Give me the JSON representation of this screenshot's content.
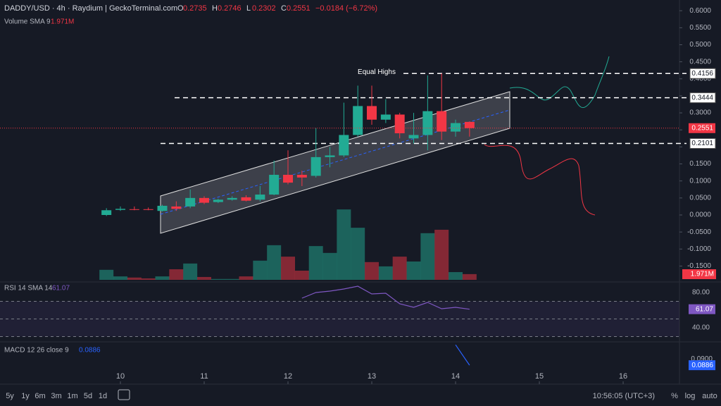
{
  "chart_data": {
    "type": "candlestick",
    "title": "DADDY/USD · 4h · Raydium | GeckoTerminal.com",
    "legend": {
      "o": "O",
      "h": "H",
      "l": "L",
      "c": "C",
      "change": "−0.0184 (−6.72%)"
    },
    "volume_title": "Volume SMA 9",
    "volume_sma_label": "1.971M",
    "volume_sma": 1.971,
    "up_color": "#22ab94",
    "down_color": "#f23645",
    "x": [
      9.8333,
      10.0,
      10.1667,
      10.3333,
      10.5,
      10.6667,
      10.8333,
      11.0,
      11.1667,
      11.3333,
      11.5,
      11.6667,
      11.8333,
      12.0,
      12.1667,
      12.3333,
      12.5,
      12.6667,
      12.8333,
      13.0,
      13.1667,
      13.3333,
      13.5,
      13.6667,
      13.8333,
      14.0,
      14.1667
    ],
    "open": [
      0.0,
      0.015,
      0.017,
      0.017,
      0.012,
      0.025,
      0.025,
      0.05,
      0.038,
      0.045,
      0.052,
      0.045,
      0.06,
      0.118,
      0.118,
      0.115,
      0.17,
      0.175,
      0.235,
      0.32,
      0.28,
      0.295,
      0.225,
      0.235,
      0.305,
      0.245,
      0.2735
    ],
    "high": [
      0.02,
      0.025,
      0.025,
      0.022,
      0.03,
      0.04,
      0.075,
      0.055,
      0.048,
      0.055,
      0.058,
      0.085,
      0.16,
      0.19,
      0.13,
      0.255,
      0.2,
      0.33,
      0.38,
      0.38,
      0.34,
      0.3,
      0.3,
      0.41,
      0.4156,
      0.28,
      0.2746
    ],
    "low": [
      -0.003,
      0.012,
      0.014,
      0.014,
      0.01,
      0.012,
      0.02,
      0.032,
      0.035,
      0.042,
      0.04,
      0.04,
      0.058,
      0.09,
      0.085,
      0.11,
      0.14,
      0.17,
      0.23,
      0.265,
      0.27,
      0.225,
      0.21,
      0.19,
      0.22,
      0.23,
      0.2302
    ],
    "close": [
      0.014,
      0.018,
      0.016,
      0.016,
      0.027,
      0.018,
      0.05,
      0.036,
      0.045,
      0.05,
      0.042,
      0.06,
      0.118,
      0.095,
      0.11,
      0.17,
      0.175,
      0.235,
      0.32,
      0.28,
      0.295,
      0.24,
      0.235,
      0.305,
      0.245,
      0.27,
      0.2551
    ],
    "volume": [
      3.5,
      1.2,
      0.8,
      0.5,
      1.2,
      3.7,
      5.7,
      1.0,
      0.3,
      0.3,
      1.2,
      6.7,
      12.1,
      8.1,
      3.2,
      11.8,
      9.4,
      24.6,
      18.2,
      6.2,
      4.7,
      8.1,
      6.4,
      16.3,
      17.5,
      2.7,
      2.0
    ],
    "xlim": [
      8.563,
      16.672
    ],
    "xticks": [
      10,
      11,
      12,
      13,
      14,
      15,
      16
    ],
    "ylim": [
      -0.1967,
      0.6315
    ],
    "yticks": [
      {
        "value": -0.15,
        "label": "-0.1500"
      },
      {
        "value": -0.1,
        "label": "-0.1000"
      },
      {
        "value": -0.05,
        "label": "-0.0500"
      },
      {
        "value": 0,
        "label": "0.0000"
      },
      {
        "value": 0.05,
        "label": "0.0500"
      },
      {
        "value": 0.1,
        "label": "0.1000"
      },
      {
        "value": 0.15,
        "label": "0.1500"
      },
      {
        "value": 0.2,
        "label": "0.2000"
      },
      {
        "value": 0.25,
        "label": "0.2500"
      },
      {
        "value": 0.3,
        "label": "0.3000"
      },
      {
        "value": 0.35,
        "label": "0.3500"
      },
      {
        "value": 0.4,
        "label": "0.4000"
      },
      {
        "value": 0.45,
        "label": "0.4500"
      },
      {
        "value": 0.5,
        "label": "0.5000"
      },
      {
        "value": 0.55,
        "label": "0.5500"
      },
      {
        "value": 0.6,
        "label": "0.6000"
      }
    ],
    "levels": [
      0.4156,
      0.3444,
      0.2101
    ],
    "annotation": "Equal Highs",
    "rsi": {
      "title": "RSI 14 SMA 14",
      "color": "#7e57c2",
      "values": [
        null,
        null,
        null,
        null,
        null,
        null,
        null,
        null,
        null,
        null,
        null,
        null,
        null,
        null,
        73.6,
        80,
        81.6,
        84,
        87.2,
        78.4,
        79.2,
        67.2,
        63.2,
        68.8,
        61.6,
        63.2,
        61.07
      ],
      "ylim": [
        24,
        92
      ],
      "yticks": [
        {
          "value": 80,
          "label": "80.00"
        },
        {
          "value": 40,
          "label": "40.00"
        }
      ],
      "bands": [
        70,
        50,
        30
      ]
    },
    "macd": {
      "title": "MACD 12 26 close 9",
      "color": "#2962ff",
      "values": [
        null,
        null,
        null,
        null,
        null,
        null,
        null,
        null,
        null,
        null,
        null,
        null,
        null,
        null,
        null,
        null,
        null,
        null,
        null,
        null,
        null,
        null,
        null,
        null,
        null,
        0.0931,
        0.0886
      ],
      "ylim": [
        0.0852,
        0.0936
      ],
      "yticks": [
        {
          "value": 0.09,
          "label": "0.0900"
        }
      ]
    }
  },
  "ui": {
    "ranges": [
      "5y",
      "1y",
      "6m",
      "3m",
      "1m",
      "5d",
      "1d"
    ],
    "clock": "10:56:05 (UTC+3)",
    "percent": "%",
    "log": "log",
    "auto": "auto"
  }
}
